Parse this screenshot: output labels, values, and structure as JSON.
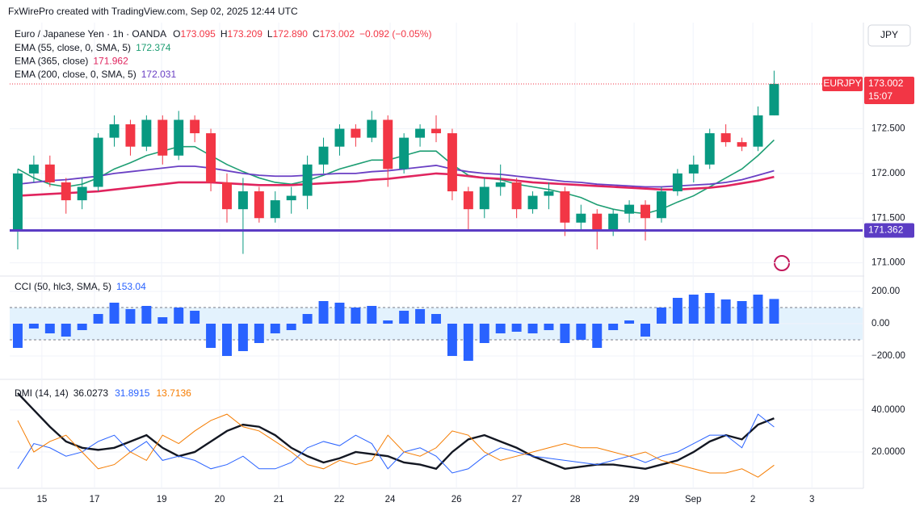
{
  "header": "FxWirePro created with TradingView.com, Sep 02, 2025 12:44 UTC",
  "chart_data": {
    "type": "candlestick",
    "title": "Euro / Japanese Yen · 1h · OANDA",
    "currency": "JPY",
    "ohlc": [
      {
        "key": "O",
        "value": 173.095,
        "label": "173.095"
      },
      {
        "key": "H",
        "value": 173.209,
        "label": "173.209"
      },
      {
        "key": "L",
        "value": 172.89,
        "label": "172.890"
      },
      {
        "key": "C",
        "value": 173.002,
        "label": "173.002"
      }
    ],
    "change": "−0.092 (−0.05%)",
    "up_color": "#089981",
    "down_color": "#f23645",
    "xlim": [
      0,
      53
    ],
    "xticks": [
      {
        "value": 2,
        "label": "15"
      },
      {
        "value": 5.27,
        "label": "17"
      },
      {
        "value": 9.44,
        "label": "19"
      },
      {
        "value": 13.05,
        "label": "20"
      },
      {
        "value": 16.72,
        "label": "21"
      },
      {
        "value": 20.48,
        "label": "22"
      },
      {
        "value": 23.64,
        "label": "24"
      },
      {
        "value": 27.76,
        "label": "26"
      },
      {
        "value": 31.52,
        "label": "27"
      },
      {
        "value": 35.14,
        "label": "28"
      },
      {
        "value": 38.8,
        "label": "29"
      },
      {
        "value": 42.47,
        "label": "Sep"
      },
      {
        "value": 46.18,
        "label": "2"
      },
      {
        "value": 49.85,
        "label": "3"
      }
    ],
    "ylim": [
      170.87,
      173.67
    ],
    "yticks": [
      {
        "value": 172.5,
        "label": "172.500"
      },
      {
        "value": 172,
        "label": "172.000"
      },
      {
        "value": 171.5,
        "label": "171.500"
      },
      {
        "value": 171,
        "label": "171.000"
      }
    ],
    "candles": [
      [
        171.35,
        172.05,
        171.15,
        172.0
      ],
      [
        172.0,
        172.2,
        171.9,
        172.1
      ],
      [
        172.1,
        172.2,
        171.85,
        171.9
      ],
      [
        171.9,
        171.95,
        171.55,
        171.7
      ],
      [
        171.7,
        171.95,
        171.6,
        171.85
      ],
      [
        171.85,
        172.45,
        171.8,
        172.4
      ],
      [
        172.4,
        172.65,
        172.3,
        172.55
      ],
      [
        172.55,
        172.6,
        172.2,
        172.3
      ],
      [
        172.3,
        172.65,
        172.25,
        172.6
      ],
      [
        172.6,
        172.65,
        172.1,
        172.2
      ],
      [
        172.2,
        172.7,
        172.15,
        172.6
      ],
      [
        172.6,
        172.65,
        172.35,
        172.45
      ],
      [
        172.45,
        172.5,
        171.8,
        171.9
      ],
      [
        171.9,
        172.0,
        171.45,
        171.6
      ],
      [
        171.6,
        171.95,
        171.1,
        171.8
      ],
      [
        171.8,
        171.85,
        171.45,
        171.5
      ],
      [
        171.5,
        171.8,
        171.45,
        171.7
      ],
      [
        171.7,
        171.85,
        171.55,
        171.75
      ],
      [
        171.75,
        172.2,
        171.6,
        172.1
      ],
      [
        172.1,
        172.4,
        172.0,
        172.3
      ],
      [
        172.3,
        172.55,
        172.2,
        172.5
      ],
      [
        172.5,
        172.55,
        172.3,
        172.4
      ],
      [
        172.4,
        172.7,
        172.35,
        172.6
      ],
      [
        172.6,
        172.65,
        171.85,
        172.05
      ],
      [
        172.05,
        172.45,
        172.0,
        172.4
      ],
      [
        172.4,
        172.55,
        172.3,
        172.5
      ],
      [
        172.5,
        172.65,
        172.35,
        172.45
      ],
      [
        172.45,
        172.5,
        171.7,
        171.8
      ],
      [
        171.8,
        171.85,
        171.35,
        171.6
      ],
      [
        171.6,
        171.95,
        171.5,
        171.85
      ],
      [
        171.85,
        172.1,
        171.75,
        171.9
      ],
      [
        171.9,
        171.95,
        171.5,
        171.6
      ],
      [
        171.6,
        171.8,
        171.55,
        171.75
      ],
      [
        171.75,
        171.9,
        171.6,
        171.8
      ],
      [
        171.8,
        171.85,
        171.3,
        171.45
      ],
      [
        171.45,
        171.65,
        171.35,
        171.55
      ],
      [
        171.55,
        171.6,
        171.15,
        171.35
      ],
      [
        171.35,
        171.6,
        171.3,
        171.55
      ],
      [
        171.55,
        171.7,
        171.45,
        171.65
      ],
      [
        171.65,
        171.7,
        171.25,
        171.5
      ],
      [
        171.5,
        171.85,
        171.45,
        171.8
      ],
      [
        171.8,
        172.05,
        171.75,
        172.0
      ],
      [
        172.0,
        172.2,
        171.9,
        172.1
      ],
      [
        172.1,
        172.5,
        172.05,
        172.45
      ],
      [
        172.45,
        172.55,
        172.3,
        172.35
      ],
      [
        172.35,
        172.4,
        172.25,
        172.3
      ],
      [
        172.3,
        172.75,
        172.25,
        172.65
      ],
      [
        172.65,
        173.15,
        172.65,
        173.002
      ]
    ],
    "series": [
      {
        "name": "EMA (55, close, 0, SMA, 5)",
        "last": 172.374,
        "color": "#1e9e73",
        "width": 1.6,
        "values": [
          172.05,
          171.95,
          171.88,
          171.85,
          171.88,
          171.95,
          172.05,
          172.12,
          172.2,
          172.25,
          172.3,
          172.3,
          172.2,
          172.1,
          172.02,
          171.95,
          171.9,
          171.88,
          171.92,
          171.98,
          172.05,
          172.1,
          172.15,
          172.15,
          172.2,
          172.25,
          172.25,
          172.1,
          171.98,
          171.95,
          171.93,
          171.88,
          171.85,
          171.82,
          171.78,
          171.73,
          171.65,
          171.6,
          171.57,
          171.55,
          171.6,
          171.68,
          171.75,
          171.85,
          171.95,
          172.05,
          172.2,
          172.374
        ]
      },
      {
        "name": "EMA (365, close)",
        "last": 171.962,
        "color": "#e0245e",
        "width": 2.6,
        "values": [
          171.75,
          171.76,
          171.77,
          171.78,
          171.79,
          171.8,
          171.82,
          171.84,
          171.86,
          171.88,
          171.9,
          171.9,
          171.9,
          171.89,
          171.88,
          171.87,
          171.87,
          171.87,
          171.88,
          171.89,
          171.9,
          171.91,
          171.93,
          171.94,
          171.96,
          171.98,
          172.0,
          171.99,
          171.97,
          171.95,
          171.94,
          171.92,
          171.9,
          171.89,
          171.88,
          171.87,
          171.86,
          171.85,
          171.84,
          171.83,
          171.82,
          171.82,
          171.83,
          171.84,
          171.86,
          171.89,
          171.92,
          171.962
        ]
      },
      {
        "name": "EMA (200, close, 0, SMA, 5)",
        "last": 172.031,
        "color": "#6a3fc4",
        "width": 1.8,
        "values": [
          171.88,
          171.9,
          171.92,
          171.93,
          171.95,
          171.97,
          172.0,
          172.02,
          172.04,
          172.06,
          172.08,
          172.08,
          172.06,
          172.03,
          172.0,
          171.98,
          171.97,
          171.97,
          171.98,
          171.99,
          172.0,
          172.0,
          172.02,
          172.03,
          172.05,
          172.07,
          172.09,
          172.05,
          172.02,
          172.0,
          171.99,
          171.97,
          171.95,
          171.93,
          171.91,
          171.9,
          171.88,
          171.87,
          171.86,
          171.85,
          171.85,
          171.86,
          171.87,
          171.88,
          171.9,
          171.93,
          171.98,
          172.031
        ]
      }
    ],
    "hline": {
      "value": 171.362,
      "color": "#5b3cc4"
    },
    "symbol": "EURJPY",
    "last_price": 173.002,
    "countdown": "15:07",
    "indicators": [
      {
        "type": "bar",
        "name": "CCI (50, hlc3, SMA, 5)",
        "last": 153.04,
        "color": "#2962ff",
        "ylim": [
          -335,
          280
        ],
        "bands": [
          100,
          -100
        ],
        "yticks": [
          {
            "value": 200,
            "label": "200.00"
          },
          {
            "value": 0,
            "label": "0.00"
          },
          {
            "value": -200,
            "label": "−200.00"
          }
        ],
        "values": [
          -150,
          -30,
          -60,
          -80,
          -40,
          60,
          130,
          90,
          110,
          40,
          100,
          80,
          -150,
          -200,
          -170,
          -120,
          -60,
          -40,
          60,
          140,
          130,
          100,
          110,
          20,
          80,
          90,
          60,
          -200,
          -230,
          -120,
          -60,
          -50,
          -60,
          -40,
          -120,
          -100,
          -150,
          -40,
          20,
          -80,
          100,
          160,
          180,
          190,
          150,
          140,
          180,
          153.04
        ]
      },
      {
        "type": "line",
        "name": "DMI (14, 14)",
        "ylim": [
          2.7,
          53.8
        ],
        "yticks": [
          {
            "value": 40,
            "label": "40.0000"
          },
          {
            "value": 20,
            "label": "20.0000"
          }
        ],
        "series": [
          {
            "last": 36.0273,
            "color": "#131722",
            "width": 2.4,
            "values": [
              48,
              40,
              32,
              25,
              22,
              21,
              22,
              25,
              28,
              22,
              18,
              20,
              25,
              30,
              33,
              32,
              28,
              22,
              18,
              15,
              17,
              20,
              19,
              18,
              15,
              14,
              12,
              20,
              26,
              28,
              25,
              22,
              18,
              15,
              12,
              13,
              14,
              14,
              13,
              12,
              14,
              16,
              20,
              25,
              28,
              26,
              33,
              36.0273
            ]
          },
          {
            "last": 31.8915,
            "color": "#2962ff",
            "width": 1,
            "values": [
              12,
              24,
              22,
              18,
              20,
              25,
              28,
              20,
              25,
              16,
              18,
              16,
              12,
              14,
              18,
              12,
              12,
              15,
              22,
              25,
              23,
              28,
              24,
              12,
              20,
              22,
              18,
              10,
              12,
              18,
              22,
              20,
              18,
              17,
              16,
              15,
              14,
              16,
              18,
              15,
              18,
              20,
              24,
              28,
              28,
              22,
              38,
              31.8915
            ]
          },
          {
            "last": 13.7136,
            "color": "#f57c00",
            "width": 1,
            "values": [
              35,
              20,
              25,
              28,
              20,
              12,
              14,
              20,
              16,
              28,
              24,
              30,
              35,
              38,
              32,
              30,
              25,
              20,
              14,
              12,
              16,
              14,
              16,
              28,
              20,
              18,
              22,
              30,
              28,
              20,
              16,
              18,
              20,
              22,
              24,
              22,
              22,
              20,
              18,
              20,
              16,
              14,
              12,
              10,
              10,
              12,
              8,
              13.7136
            ]
          }
        ]
      }
    ]
  }
}
